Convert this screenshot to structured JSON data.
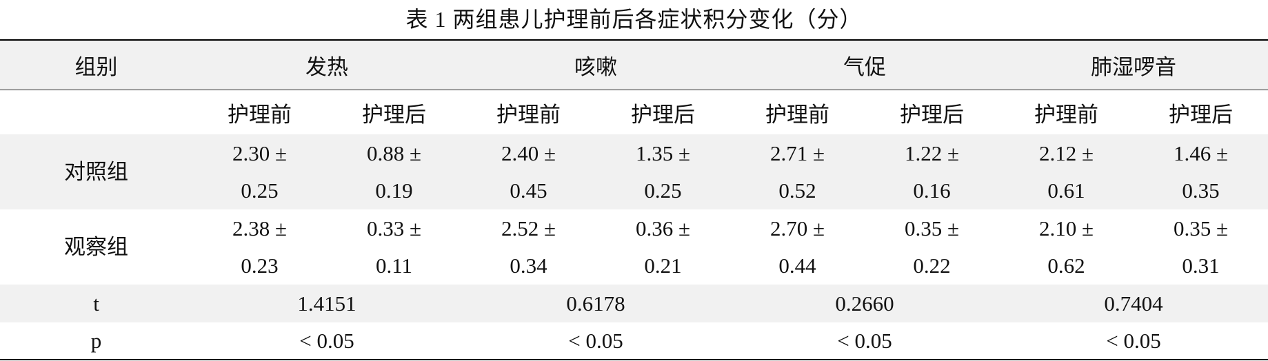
{
  "title": "表 1 两组患儿护理前后各症状积分变化（分）",
  "table": {
    "header": [
      "组别",
      "发热",
      "咳嗽",
      "气促",
      "肺湿啰音"
    ],
    "subheader": [
      "护理前",
      "护理后",
      "护理前",
      "护理后",
      "护理前",
      "护理后",
      "护理前",
      "护理后"
    ],
    "rows": [
      [
        "对照组",
        "2.30 ± 0.25",
        "0.88 ± 0.19",
        "2.40 ± 0.45",
        "1.35 ± 0.25",
        "2.71 ± 0.52",
        "1.22 ± 0.16",
        "2.12 ± 0.61",
        "1.46 ± 0.35"
      ],
      [
        "观察组",
        "2.38 ± 0.23",
        "0.33 ± 0.11",
        "2.52 ± 0.34",
        "0.36 ± 0.21",
        "2.70 ± 0.44",
        "0.35 ± 0.22",
        "2.10 ± 0.62",
        "0.35 ± 0.31"
      ]
    ],
    "stats": [
      [
        "t",
        "1.4151",
        "0.6178",
        "0.2660",
        "0.7404"
      ],
      [
        "p",
        "< 0.05",
        "< 0.05",
        "< 0.05",
        "< 0.05"
      ]
    ]
  }
}
